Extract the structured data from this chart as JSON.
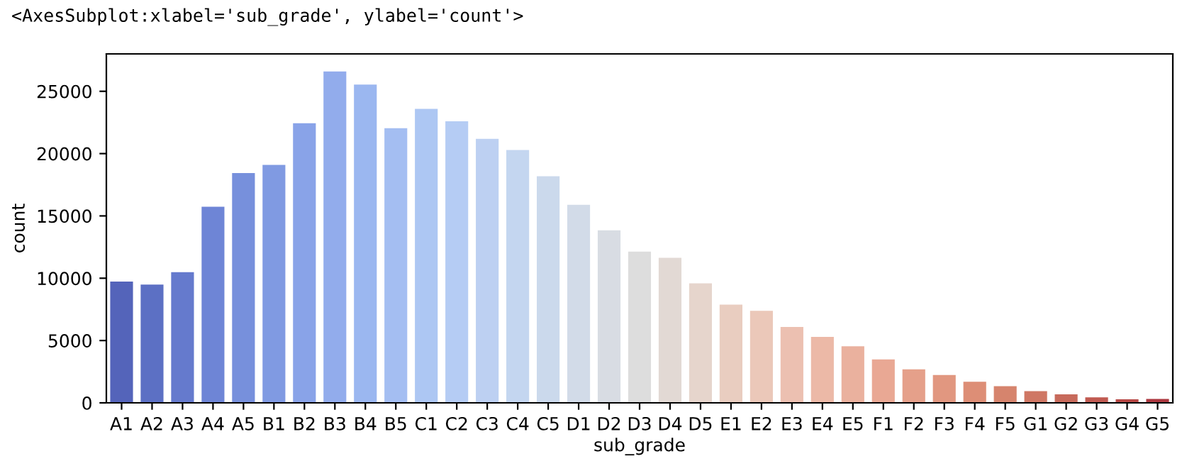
{
  "chart_data": {
    "type": "bar",
    "annotations": [
      "<AxesSubplot:xlabel='sub_grade', ylabel='count'>"
    ],
    "xlabel": "sub_grade",
    "ylabel": "count",
    "categories": [
      "A1",
      "A2",
      "A3",
      "A4",
      "A5",
      "B1",
      "B2",
      "B3",
      "B4",
      "B5",
      "C1",
      "C2",
      "C3",
      "C4",
      "C5",
      "D1",
      "D2",
      "D3",
      "D4",
      "D5",
      "E1",
      "E2",
      "E3",
      "E4",
      "E5",
      "F1",
      "F2",
      "F3",
      "F4",
      "F5",
      "G1",
      "G2",
      "G3",
      "G4",
      "G5"
    ],
    "values": [
      9800,
      9550,
      10550,
      15800,
      18500,
      19150,
      22500,
      26650,
      25600,
      22100,
      23650,
      22650,
      21250,
      20350,
      18250,
      15950,
      13900,
      12200,
      11700,
      9650,
      7950,
      7450,
      6150,
      5350,
      4600,
      3550,
      2750,
      2300,
      1750,
      1400,
      1000,
      750,
      500,
      350,
      380
    ],
    "colors": [
      "#5464ba",
      "#5c70c4",
      "#657acd",
      "#6e85d6",
      "#7790dc",
      "#809ae2",
      "#89a3e8",
      "#92acec",
      "#9bb7f0",
      "#a4bef2",
      "#adc7f3",
      "#b5ccf4",
      "#bdd0f2",
      "#c4d6f0",
      "#cbd9ec",
      "#d2dbe8",
      "#d8dce3",
      "#dddddd",
      "#e2d9d4",
      "#e6d5cc",
      "#e9cdc0",
      "#ebc8b9",
      "#ecc0b1",
      "#ecb9a7",
      "#eab19e",
      "#e9a894",
      "#e5a08a",
      "#e19780",
      "#dd8e76",
      "#d6846d",
      "#cf7764",
      "#c76a5b",
      "#c05a51",
      "#b74744",
      "#ac373f"
    ],
    "ylim": [
      0,
      28000
    ],
    "yticks": [
      0,
      5000,
      10000,
      15000,
      20000,
      25000
    ],
    "grid": false
  }
}
